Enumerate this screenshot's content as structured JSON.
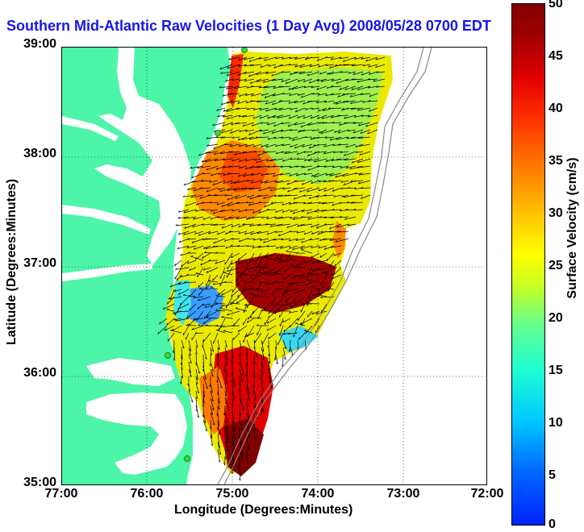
{
  "title": "Southern Mid-Atlantic Raw Velocities (1 Day Avg) 2008/05/28 0700 EDT",
  "axes": {
    "xlabel": "Longitude (Degrees:Minutes)",
    "ylabel": "Latitude (Degrees:Minutes)",
    "xticks": [
      "77:00",
      "76:00",
      "75:00",
      "74:00",
      "73:00",
      "72:00"
    ],
    "yticks": [
      "39:00",
      "38:00",
      "37:00",
      "36:00",
      "35:00"
    ],
    "grid": "dotted"
  },
  "colorbar": {
    "label": "Surface Velocity (cm/s)",
    "ticks": [
      "50",
      "45",
      "40",
      "35",
      "30",
      "25",
      "20",
      "15",
      "10",
      "5",
      "0"
    ],
    "range": [
      0,
      50
    ]
  },
  "colors": {
    "land": "#4cf5a8",
    "water": "#ffffff",
    "title_color": "#1515ee",
    "site_marker": "#33dd33"
  }
}
